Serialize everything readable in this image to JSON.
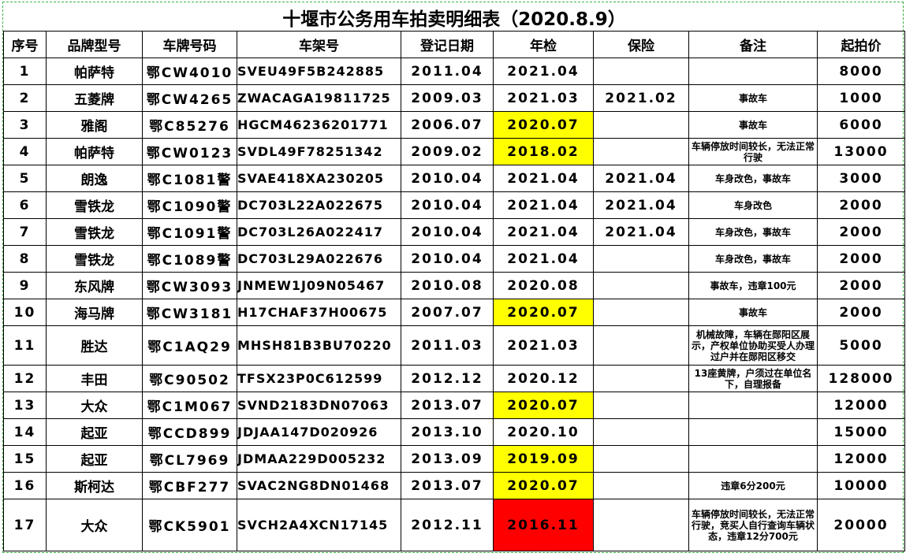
{
  "title": "十堰市公务用车拍卖明细表（2020.8.9）",
  "headers": [
    "序号",
    "品牌型号",
    "车牌号码",
    "车架号",
    "登记日期",
    "年检",
    "保险",
    "备注",
    "起拍价"
  ],
  "colors": {
    "highlight_yellow": "#ffff00",
    "highlight_red": "#ff0000",
    "sheet_border": "#3cb043"
  },
  "rows": [
    {
      "no": "1",
      "brand": "帕萨特",
      "plate": "鄂CW4010",
      "vin": "SVEU49F5B242885",
      "reg": "2011.04",
      "inspect": "2021.04",
      "insure": "",
      "note": "",
      "price": "8000",
      "hl": ""
    },
    {
      "no": "2",
      "brand": "五菱牌",
      "plate": "鄂CW4265",
      "vin": "ZWACAGA19811725",
      "reg": "2009.03",
      "inspect": "2021.03",
      "insure": "2021.02",
      "note": "事故车",
      "price": "1000",
      "hl": ""
    },
    {
      "no": "3",
      "brand": "雅阁",
      "plate": "鄂C85276",
      "vin": "HGCM46236201771",
      "reg": "2006.07",
      "inspect": "2020.07",
      "insure": "",
      "note": "事故车",
      "price": "6000",
      "hl": "yellow"
    },
    {
      "no": "4",
      "brand": "帕萨特",
      "plate": "鄂CW0123",
      "vin": "SVDL49F78251342",
      "reg": "2009.02",
      "inspect": "2018.02",
      "insure": "",
      "note": "车辆停放时间较长，无法正常行驶",
      "price": "13000",
      "hl": "yellow"
    },
    {
      "no": "5",
      "brand": "朗逸",
      "plate": "鄂C1081警",
      "vin": "SVAE418XA230205",
      "reg": "2010.04",
      "inspect": "2021.04",
      "insure": "2021.04",
      "note": "车身改色，事故车",
      "price": "3000",
      "hl": ""
    },
    {
      "no": "6",
      "brand": "雪铁龙",
      "plate": "鄂C1090警",
      "vin": "DC703L22A022675",
      "reg": "2010.04",
      "inspect": "2021.04",
      "insure": "2021.04",
      "note": "车身改色",
      "price": "2000",
      "hl": ""
    },
    {
      "no": "7",
      "brand": "雪铁龙",
      "plate": "鄂C1091警",
      "vin": "DC703L26A022417",
      "reg": "2010.04",
      "inspect": "2021.04",
      "insure": "2021.04",
      "note": "车身改色，事故车",
      "price": "2000",
      "hl": ""
    },
    {
      "no": "8",
      "brand": "雪铁龙",
      "plate": "鄂C1089警",
      "vin": "DC703L29A022676",
      "reg": "2010.04",
      "inspect": "2021.04",
      "insure": "",
      "note": "车身改色，事故车",
      "price": "2000",
      "hl": ""
    },
    {
      "no": "9",
      "brand": "东风牌",
      "plate": "鄂CW3093",
      "vin": "JNMEW1J09N05467",
      "reg": "2010.08",
      "inspect": "2020.08",
      "insure": "",
      "note": "事故车，违章100元",
      "price": "2000",
      "hl": ""
    },
    {
      "no": "10",
      "brand": "海马牌",
      "plate": "鄂CW3181",
      "vin": "H17CHAF37H00675",
      "reg": "2007.07",
      "inspect": "2020.07",
      "insure": "",
      "note": "事故车",
      "price": "2000",
      "hl": "yellow"
    },
    {
      "no": "11",
      "brand": "胜达",
      "plate": "鄂C1AQ29",
      "vin": "MHSH81B3BU70220",
      "reg": "2011.03",
      "inspect": "2021.03",
      "insure": "",
      "note": "机械故障，车辆在郧阳区展示，产权单位协助买受人办理过户并在郧阳区移交",
      "price": "5000",
      "hl": ""
    },
    {
      "no": "12",
      "brand": "丰田",
      "plate": "鄂C90502",
      "vin": "TFSX23P0C612599",
      "reg": "2012.12",
      "inspect": "2020.12",
      "insure": "",
      "note": "13座黄牌，户须过在单位名下，自理报备",
      "price": "128000",
      "hl": ""
    },
    {
      "no": "13",
      "brand": "大众",
      "plate": "鄂C1M067",
      "vin": "SVND2183DN07063",
      "reg": "2013.07",
      "inspect": "2020.07",
      "insure": "",
      "note": "",
      "price": "12000",
      "hl": "yellow"
    },
    {
      "no": "14",
      "brand": "起亚",
      "plate": "鄂CCD899",
      "vin": "JDJAA147D020926",
      "reg": "2013.10",
      "inspect": "2020.10",
      "insure": "",
      "note": "",
      "price": "15000",
      "hl": ""
    },
    {
      "no": "15",
      "brand": "起亚",
      "plate": "鄂CL7969",
      "vin": "JDMAA229D005232",
      "reg": "2013.09",
      "inspect": "2019.09",
      "insure": "",
      "note": "",
      "price": "12000",
      "hl": "yellow"
    },
    {
      "no": "16",
      "brand": "斯柯达",
      "plate": "鄂CBF277",
      "vin": "SVAC2NG8DN01468",
      "reg": "2013.07",
      "inspect": "2020.07",
      "insure": "",
      "note": "违章6分200元",
      "price": "10000",
      "hl": "yellow"
    },
    {
      "no": "17",
      "brand": "大众",
      "plate": "鄂CK5901",
      "vin": "SVCH2A4XCN17145",
      "reg": "2012.11",
      "inspect": "2016.11",
      "insure": "",
      "note": "车辆停放时间较长，无法正常行驶，竞买人自行查询车辆状态，违章12分700元",
      "price": "20000",
      "hl": "red"
    }
  ]
}
